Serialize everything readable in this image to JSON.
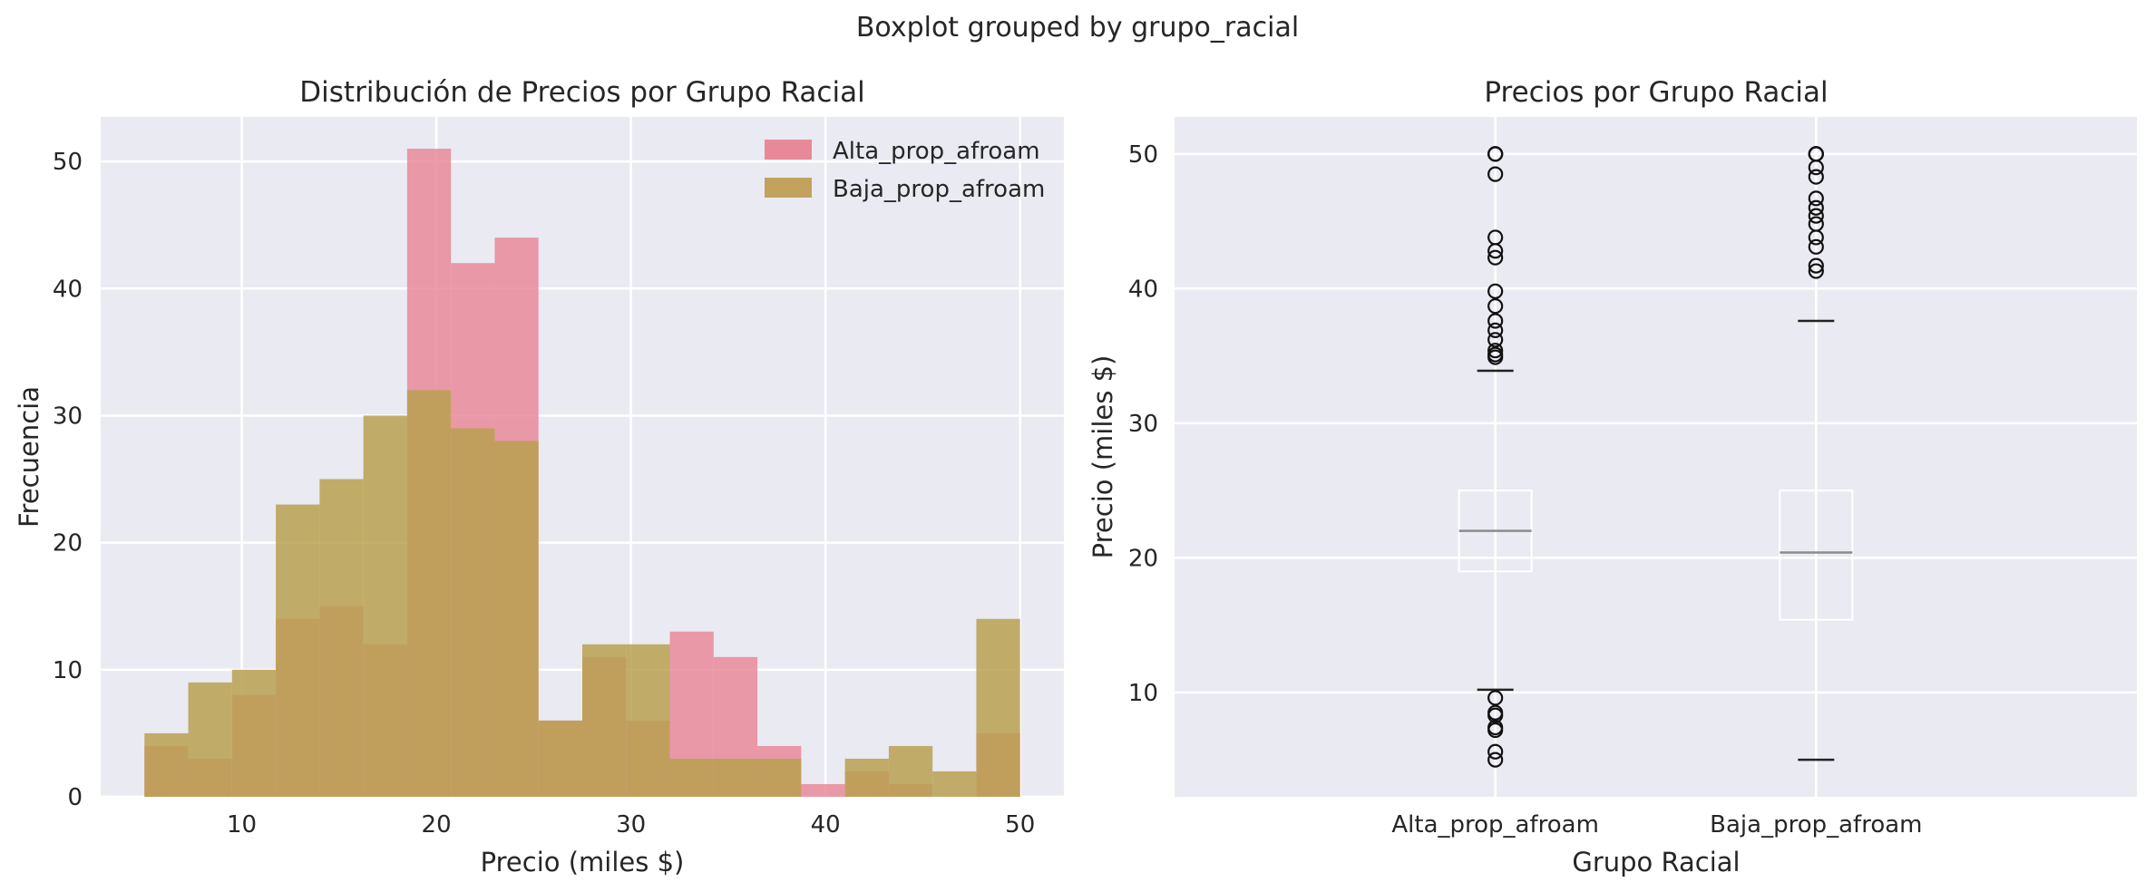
{
  "suptitle": "Boxplot grouped by grupo_racial",
  "chart_data": [
    {
      "type": "bar",
      "title": "Distribución de Precios por Grupo Racial",
      "xlabel": "Precio (miles $)",
      "ylabel": "Frecuencia",
      "xlim": [
        2.75,
        52.25
      ],
      "ylim": [
        0,
        53.5
      ],
      "xticks": [
        10,
        20,
        30,
        40,
        50
      ],
      "yticks": [
        0,
        10,
        20,
        30,
        40,
        50
      ],
      "bin_edges": [
        5,
        7.25,
        9.5,
        11.75,
        14,
        16.25,
        18.5,
        20.75,
        23,
        25.25,
        27.5,
        29.75,
        32,
        34.25,
        36.5,
        38.75,
        41,
        43.25,
        45.5,
        47.75,
        50
      ],
      "grid": true,
      "legend": "top-right",
      "colors": {
        "Alta_prop_afroam": "#e8899a",
        "Baja_prop_afroam": "#b8a050"
      },
      "series": [
        {
          "name": "Alta_prop_afroam",
          "values": [
            4,
            3,
            8,
            14,
            15,
            12,
            51,
            42,
            44,
            6,
            11,
            6,
            13,
            11,
            4,
            1,
            2,
            1,
            0,
            5
          ]
        },
        {
          "name": "Baja_prop_afroam",
          "values": [
            5,
            9,
            10,
            23,
            25,
            30,
            32,
            29,
            28,
            6,
            12,
            12,
            3,
            3,
            3,
            0,
            3,
            4,
            2,
            14
          ]
        }
      ]
    },
    {
      "type": "box",
      "title": "Precios por Grupo Racial",
      "xlabel": "Grupo Racial",
      "ylabel": "Precio (miles $)",
      "ylim": [
        2.25,
        52.75
      ],
      "yticks": [
        10,
        20,
        30,
        40,
        50
      ],
      "grid": true,
      "categories": [
        "Alta_prop_afroam",
        "Baja_prop_afroam"
      ],
      "boxes": [
        {
          "name": "Alta_prop_afroam",
          "whisker_low": 10.2,
          "q1": 19.0,
          "median": 22.0,
          "q3": 25.0,
          "whisker_high": 33.9,
          "outliers": [
            50,
            50,
            50,
            48.5,
            43.8,
            42.8,
            42.3,
            39.8,
            38.7,
            37.6,
            36.9,
            36.2,
            35.4,
            35.1,
            34.9,
            9.6,
            8.5,
            8.3,
            7.4,
            7.2,
            5.6,
            5.0
          ]
        },
        {
          "name": "Baja_prop_afroam",
          "whisker_low": 5.0,
          "q1": 15.4,
          "median": 20.4,
          "q3": 25.0,
          "whisker_high": 37.6,
          "outliers": [
            50,
            50,
            50,
            50,
            49.0,
            48.3,
            46.7,
            46.0,
            45.4,
            44.8,
            43.8,
            43.1,
            41.7,
            41.3
          ]
        }
      ]
    }
  ]
}
